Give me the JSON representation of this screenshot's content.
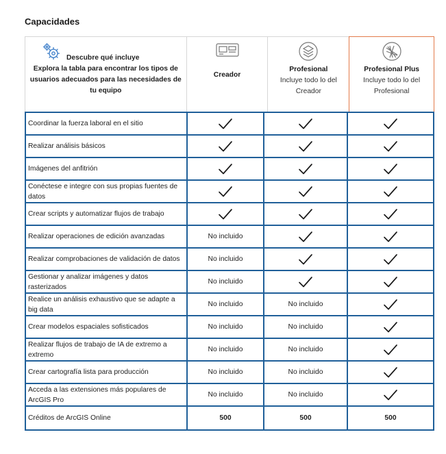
{
  "title": "Capacidades",
  "header": {
    "discover": "Descubre qué incluye",
    "explore": "Explora la tabla para encontrar los tipos de usuarios adecuados para las necesidades de tu equipo",
    "columns": [
      {
        "name": "Creador",
        "sub": "",
        "icon": "creator-icon"
      },
      {
        "name": "Profesional",
        "sub": "Incluye todo lo del Creador",
        "icon": "professional-icon"
      },
      {
        "name": "Profesional Plus",
        "sub": "Incluye todo lo del Profesional",
        "icon": "professional-plus-icon",
        "highlight_color": "#e37a4a"
      }
    ]
  },
  "colors": {
    "grid": "#1f5f99",
    "highlight": "#e37a4a",
    "header_border": "#d6d6d6"
  },
  "rows": [
    {
      "feature": "Coordinar la fuerza laboral en el sitio",
      "values": [
        "check",
        "check",
        "check"
      ]
    },
    {
      "feature": "Realizar análisis básicos",
      "values": [
        "check",
        "check",
        "check"
      ]
    },
    {
      "feature": "Imágenes del anfitrión",
      "values": [
        "check",
        "check",
        "check"
      ]
    },
    {
      "feature": "Conéctese e integre con sus propias fuentes de datos",
      "values": [
        "check",
        "check",
        "check"
      ]
    },
    {
      "feature": "Crear scripts y automatizar flujos de trabajo",
      "values": [
        "check",
        "check",
        "check"
      ]
    },
    {
      "feature": "Realizar operaciones de edición avanzadas",
      "values": [
        "No incluido",
        "check",
        "check"
      ]
    },
    {
      "feature": "Realizar comprobaciones de validación de datos",
      "values": [
        "No incluido",
        "check",
        "check"
      ]
    },
    {
      "feature": "Gestionar y analizar imágenes y datos rasterizados",
      "values": [
        "No incluido",
        "check",
        "check"
      ]
    },
    {
      "feature": "Realice un análisis exhaustivo que se adapte a big data",
      "values": [
        "No incluido",
        "No incluido",
        "check"
      ]
    },
    {
      "feature": "Crear modelos espaciales sofisticados",
      "values": [
        "No incluido",
        "No incluido",
        "check"
      ]
    },
    {
      "feature": "Realizar flujos de trabajo de IA de extremo a extremo",
      "values": [
        "No incluido",
        "No incluido",
        "check"
      ]
    },
    {
      "feature": "Crear cartografía lista para producción",
      "values": [
        "No incluido",
        "No incluido",
        "check"
      ]
    },
    {
      "feature": "Acceda a las extensiones más populares de ArcGIS Pro",
      "values": [
        "No incluido",
        "No incluido",
        "check"
      ]
    },
    {
      "feature": "Créditos de ArcGIS Online",
      "values": [
        "500",
        "500",
        "500"
      ],
      "bold": true
    }
  ]
}
